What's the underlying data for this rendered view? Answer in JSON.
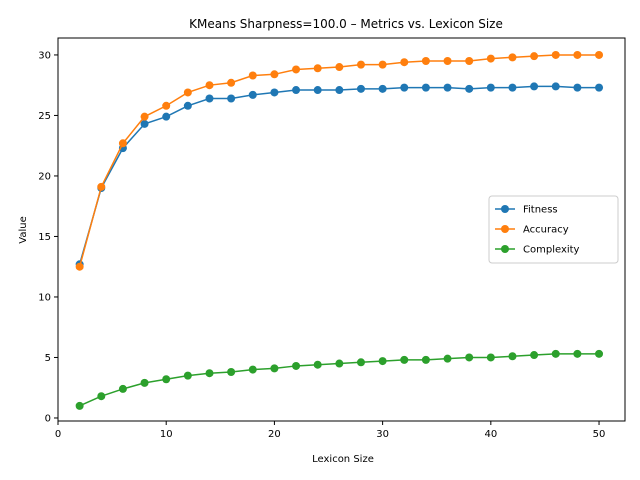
{
  "chart_data": {
    "type": "line",
    "title": "KMeans Sharpness=100.0 – Metrics vs. Lexicon Size",
    "xlabel": "Lexicon Size",
    "ylabel": "Value",
    "xlim": [
      0.0,
      52.4
    ],
    "ylim": [
      -0.25,
      31.4
    ],
    "xticks": [
      0,
      10,
      20,
      30,
      40,
      50
    ],
    "yticks": [
      0,
      5,
      10,
      15,
      20,
      25,
      30
    ],
    "grid": false,
    "legend_position": "center-right",
    "x": [
      2,
      4,
      6,
      8,
      10,
      12,
      14,
      16,
      18,
      20,
      22,
      24,
      26,
      28,
      30,
      32,
      34,
      36,
      38,
      40,
      42,
      44,
      46,
      48,
      50
    ],
    "series": [
      {
        "name": "Fitness",
        "color": "#1f77b4",
        "values": [
          12.7,
          19.0,
          22.3,
          24.3,
          24.9,
          25.8,
          26.4,
          26.4,
          26.7,
          26.9,
          27.1,
          27.1,
          27.1,
          27.2,
          27.2,
          27.3,
          27.3,
          27.3,
          27.2,
          27.3,
          27.3,
          27.4,
          27.4,
          27.3,
          27.3
        ]
      },
      {
        "name": "Accuracy",
        "color": "#ff7f0e",
        "values": [
          12.5,
          19.1,
          22.7,
          24.9,
          25.8,
          26.9,
          27.5,
          27.7,
          28.3,
          28.4,
          28.8,
          28.9,
          29.0,
          29.2,
          29.2,
          29.4,
          29.5,
          29.5,
          29.5,
          29.7,
          29.8,
          29.9,
          30.0,
          30.0,
          30.0
        ]
      },
      {
        "name": "Complexity",
        "color": "#2ca02c",
        "values": [
          1.0,
          1.8,
          2.4,
          2.9,
          3.2,
          3.5,
          3.7,
          3.8,
          4.0,
          4.1,
          4.3,
          4.4,
          4.5,
          4.6,
          4.7,
          4.8,
          4.8,
          4.9,
          5.0,
          5.0,
          5.1,
          5.2,
          5.3,
          5.3,
          5.3
        ]
      }
    ]
  }
}
